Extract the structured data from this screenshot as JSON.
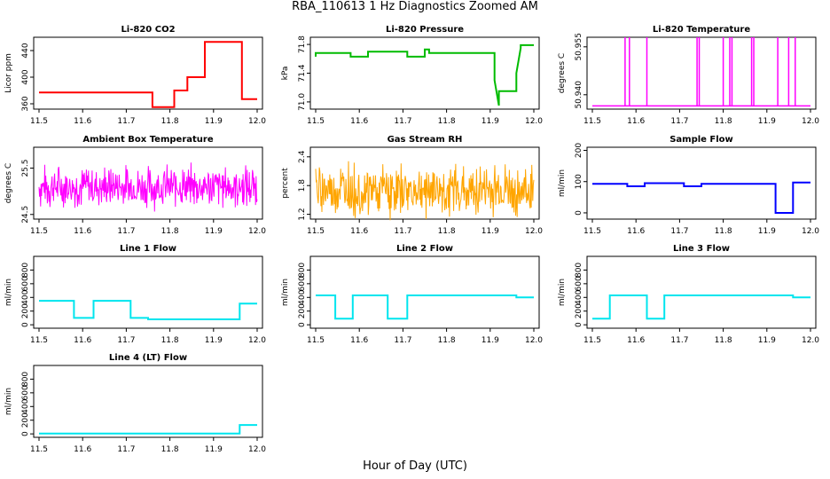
{
  "page": {
    "title": "RBA_110613  1 Hz Diagnostics Zoomed AM",
    "xlabel": "Hour of Day (UTC)"
  },
  "chart_data": [
    {
      "type": "line",
      "title": "Li-820 CO2",
      "xlabel": "",
      "ylabel": "Licor ppm",
      "color": "#ff0000",
      "xlim": [
        11.5,
        12.0
      ],
      "ylim": [
        352,
        460
      ],
      "xticks": [
        "11.5",
        "11.6",
        "11.7",
        "11.8",
        "11.9",
        "12.0"
      ],
      "yticks": [
        {
          "v": 360,
          "t": "360"
        },
        {
          "v": 400,
          "t": "400"
        },
        {
          "v": 440,
          "t": "440"
        }
      ],
      "series": [
        {
          "x": [
            11.5,
            11.76,
            11.76,
            11.81,
            11.81,
            11.84,
            11.84,
            11.88,
            11.88,
            11.96,
            11.965,
            11.965,
            12.0
          ],
          "y": [
            377,
            377,
            355,
            355,
            380,
            380,
            400,
            400,
            453,
            453,
            453,
            367,
            367
          ]
        }
      ]
    },
    {
      "type": "line",
      "title": "Li-820 Pressure",
      "xlabel": "",
      "ylabel": "kPa",
      "color": "#00bb00",
      "xlim": [
        11.5,
        12.0
      ],
      "ylim": [
        70.9,
        71.9
      ],
      "xticks": [
        "11.5",
        "11.6",
        "11.7",
        "11.8",
        "11.9",
        "12.0"
      ],
      "yticks": [
        {
          "v": 71.0,
          "t": "71.0"
        },
        {
          "v": 71.4,
          "t": "71.4"
        },
        {
          "v": 71.8,
          "t": "71.8"
        }
      ],
      "series": [
        {
          "x": [
            11.5,
            11.5,
            11.58,
            11.58,
            11.62,
            11.62,
            11.71,
            11.71,
            11.75,
            11.75,
            11.76,
            11.76,
            11.91,
            11.91,
            11.92,
            11.92,
            11.96,
            11.96,
            11.97,
            11.97,
            12.0
          ],
          "y": [
            71.63,
            71.68,
            71.68,
            71.63,
            71.63,
            71.7,
            71.7,
            71.63,
            71.63,
            71.73,
            71.73,
            71.68,
            71.68,
            71.3,
            70.95,
            71.15,
            71.15,
            71.4,
            71.75,
            71.79,
            71.79
          ]
        }
      ]
    },
    {
      "type": "line",
      "title": "Li-820 Temperature",
      "xlabel": "",
      "ylabel": "degrees C",
      "color": "#ff00ff",
      "xlim": [
        11.5,
        12.0
      ],
      "ylim": [
        50.9355,
        50.958
      ],
      "xticks": [
        "11.5",
        "11.6",
        "11.7",
        "11.8",
        "11.9",
        "12.0"
      ],
      "yticks": [
        {
          "v": 50.94,
          "t": "50.940"
        },
        {
          "v": 50.955,
          "t": "50.955"
        }
      ],
      "series": [
        {
          "spikes": [
            11.575,
            11.585,
            11.625,
            11.74,
            11.745,
            11.8,
            11.815,
            11.82,
            11.865,
            11.87,
            11.925,
            11.95,
            11.965
          ],
          "base": 50.9365,
          "top": 50.958
        }
      ]
    },
    {
      "type": "line",
      "title": "Ambient Box Temperature",
      "xlabel": "",
      "ylabel": "degrees C",
      "color": "#ff00ff",
      "xlim": [
        11.5,
        12.0
      ],
      "ylim": [
        24.4,
        25.95
      ],
      "xticks": [
        "11.5",
        "11.6",
        "11.7",
        "11.8",
        "11.9",
        "12.0"
      ],
      "yticks": [
        {
          "v": 24.5,
          "t": "24.5"
        },
        {
          "v": 25.5,
          "t": "25.5"
        }
      ],
      "series": [
        {
          "noise": {
            "mean": 25.1,
            "amp": 0.55,
            "seed": 7
          }
        }
      ]
    },
    {
      "type": "line",
      "title": "Gas Stream RH",
      "xlabel": "",
      "ylabel": "percent",
      "color": "#ffa500",
      "xlim": [
        11.5,
        12.0
      ],
      "ylim": [
        1.1,
        2.6
      ],
      "xticks": [
        "11.5",
        "11.6",
        "11.7",
        "11.8",
        "11.9",
        "12.0"
      ],
      "yticks": [
        {
          "v": 1.2,
          "t": "1.2"
        },
        {
          "v": 1.8,
          "t": "1.8"
        },
        {
          "v": 2.4,
          "t": "2.4"
        }
      ],
      "series": [
        {
          "noise": {
            "mean": 1.7,
            "amp": 0.65,
            "seed": 19
          }
        }
      ]
    },
    {
      "type": "line",
      "title": "Sample Flow",
      "xlabel": "",
      "ylabel": "ml/min",
      "color": "#0000ff",
      "xlim": [
        11.5,
        12.0
      ],
      "ylim": [
        -20,
        210
      ],
      "xticks": [
        "11.5",
        "11.6",
        "11.7",
        "11.8",
        "11.9",
        "12.0"
      ],
      "yticks": [
        {
          "v": 0,
          "t": "0"
        },
        {
          "v": 100,
          "t": "100"
        },
        {
          "v": 200,
          "t": "200"
        }
      ],
      "series": [
        {
          "x": [
            11.5,
            11.58,
            11.58,
            11.62,
            11.62,
            11.71,
            11.71,
            11.75,
            11.75,
            11.92,
            11.92,
            11.96,
            11.96,
            12.0
          ],
          "y": [
            93,
            93,
            85,
            85,
            95,
            95,
            85,
            85,
            93,
            93,
            0,
            0,
            97,
            97
          ]
        }
      ]
    },
    {
      "type": "line",
      "title": "Line 1 Flow",
      "xlabel": "",
      "ylabel": "ml/min",
      "color": "#00e5ee",
      "xlim": [
        11.5,
        12.0
      ],
      "ylim": [
        -50,
        1000
      ],
      "xticks": [
        "11.5",
        "11.6",
        "11.7",
        "11.8",
        "11.9",
        "12.0"
      ],
      "yticks": [
        {
          "v": 0,
          "t": "0"
        },
        {
          "v": 200,
          "t": "200"
        },
        {
          "v": 400,
          "t": "400"
        },
        {
          "v": 600,
          "t": "600"
        },
        {
          "v": 800,
          "t": "800"
        }
      ],
      "series": [
        {
          "x": [
            11.5,
            11.58,
            11.58,
            11.625,
            11.625,
            11.71,
            11.71,
            11.75,
            11.75,
            11.96,
            11.96,
            12.0
          ],
          "y": [
            350,
            350,
            100,
            100,
            350,
            350,
            100,
            100,
            80,
            80,
            310,
            310
          ]
        }
      ]
    },
    {
      "type": "line",
      "title": "Line 2 Flow",
      "xlabel": "",
      "ylabel": "ml/min",
      "color": "#00e5ee",
      "xlim": [
        11.5,
        12.0
      ],
      "ylim": [
        -50,
        1000
      ],
      "xticks": [
        "11.5",
        "11.6",
        "11.7",
        "11.8",
        "11.9",
        "12.0"
      ],
      "yticks": [
        {
          "v": 0,
          "t": "0"
        },
        {
          "v": 200,
          "t": "200"
        },
        {
          "v": 400,
          "t": "400"
        },
        {
          "v": 600,
          "t": "600"
        },
        {
          "v": 800,
          "t": "800"
        }
      ],
      "series": [
        {
          "x": [
            11.5,
            11.545,
            11.545,
            11.585,
            11.585,
            11.665,
            11.665,
            11.71,
            11.71,
            11.96,
            11.96,
            12.0
          ],
          "y": [
            430,
            430,
            90,
            90,
            430,
            430,
            90,
            90,
            430,
            430,
            400,
            400
          ]
        }
      ]
    },
    {
      "type": "line",
      "title": "Line 3 Flow",
      "xlabel": "",
      "ylabel": "ml/min",
      "color": "#00e5ee",
      "xlim": [
        11.5,
        12.0
      ],
      "ylim": [
        -50,
        1000
      ],
      "xticks": [
        "11.5",
        "11.6",
        "11.7",
        "11.8",
        "11.9",
        "12.0"
      ],
      "yticks": [
        {
          "v": 0,
          "t": "0"
        },
        {
          "v": 200,
          "t": "200"
        },
        {
          "v": 400,
          "t": "400"
        },
        {
          "v": 600,
          "t": "600"
        },
        {
          "v": 800,
          "t": "800"
        }
      ],
      "series": [
        {
          "x": [
            11.5,
            11.54,
            11.54,
            11.625,
            11.625,
            11.665,
            11.665,
            11.96,
            11.96,
            12.0
          ],
          "y": [
            90,
            90,
            430,
            430,
            90,
            90,
            430,
            430,
            400,
            400
          ]
        }
      ]
    },
    {
      "type": "line",
      "title": "Line 4 (LT) Flow",
      "xlabel": "",
      "ylabel": "ml/min",
      "color": "#00e5ee",
      "xlim": [
        11.5,
        12.0
      ],
      "ylim": [
        -50,
        1000
      ],
      "xticks": [
        "11.5",
        "11.6",
        "11.7",
        "11.8",
        "11.9",
        "12.0"
      ],
      "yticks": [
        {
          "v": 0,
          "t": "0"
        },
        {
          "v": 200,
          "t": "200"
        },
        {
          "v": 400,
          "t": "400"
        },
        {
          "v": 600,
          "t": "600"
        },
        {
          "v": 800,
          "t": "800"
        }
      ],
      "series": [
        {
          "x": [
            11.5,
            11.96,
            11.96,
            12.0
          ],
          "y": [
            5,
            5,
            130,
            130
          ]
        }
      ]
    }
  ]
}
